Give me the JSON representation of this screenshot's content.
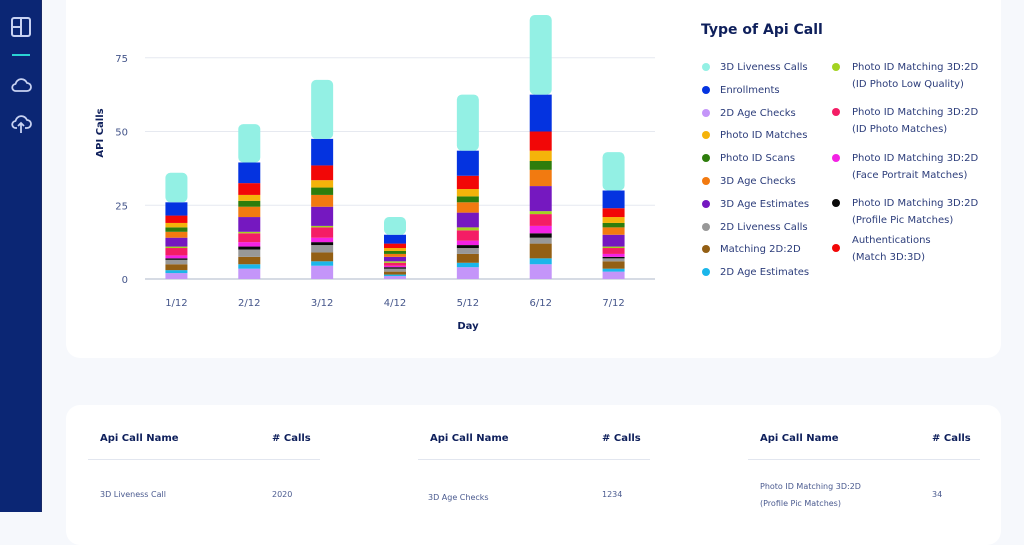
{
  "sidebar": {
    "items": [
      {
        "icon": "layout-icon",
        "active": true
      },
      {
        "icon": "cloud-icon",
        "active": false
      },
      {
        "icon": "cloud-upload-icon",
        "active": false
      }
    ]
  },
  "legend": {
    "title": "Type of Api Call",
    "left_column": [
      {
        "label": "3D Liveness Calls",
        "color": "#93f0e4"
      },
      {
        "label": "Enrollments",
        "color": "#0433e0"
      },
      {
        "label": "2D Age Checks",
        "color": "#c495f9"
      },
      {
        "label": "Photo ID Matches",
        "color": "#f5b30a"
      },
      {
        "label": "Photo ID Scans",
        "color": "#2e7d0c"
      },
      {
        "label": "3D Age Checks",
        "color": "#f27a10"
      },
      {
        "label": "3D Age Estimates",
        "color": "#7518c0"
      },
      {
        "label": "2D Liveness Calls",
        "color": "#989898"
      },
      {
        "label": "Matching 2D:2D",
        "color": "#935f14"
      },
      {
        "label": "2D Age Estimates",
        "color": "#1bb6ea"
      }
    ],
    "right_column": [
      {
        "line1": "Photo ID Matching 3D:2D",
        "line2": "(ID Photo Low Quality)",
        "color": "#a3d321"
      },
      {
        "line1": "Photo ID Matching 3D:2D",
        "line2": "(ID Photo Matches)",
        "color": "#f41d65"
      },
      {
        "line1": "Photo ID Matching 3D:2D",
        "line2": "(Face Portrait Matches)",
        "color": "#f322e4"
      },
      {
        "line1": "Photo ID Matching 3D:2D",
        "line2": "(Profile Pic Matches)",
        "color": "#0a0a0a"
      },
      {
        "line1": "Authentications",
        "line2": "(Match 3D:3D)",
        "color": "#f20707"
      }
    ]
  },
  "chart_data": {
    "type": "bar",
    "stacked": true,
    "title": "",
    "xlabel": "Day",
    "ylabel": "API Calls",
    "ylim": [
      0,
      90
    ],
    "yticks": [
      0,
      25,
      50,
      75
    ],
    "grid": true,
    "legend_position": "right",
    "categories": [
      "1/12",
      "2/12",
      "3/12",
      "4/12",
      "5/12",
      "6/12",
      "7/12"
    ],
    "series": [
      {
        "name": "2D Age Checks",
        "color": "#c495f9",
        "values": [
          2,
          3.5,
          4.5,
          1,
          4,
          5,
          2.5
        ]
      },
      {
        "name": "2D Age Estimates",
        "color": "#1bb6ea",
        "values": [
          1,
          1.5,
          1.5,
          0.5,
          1.5,
          2,
          1
        ]
      },
      {
        "name": "Matching 2D:2D",
        "color": "#935f14",
        "values": [
          2,
          2.5,
          3,
          1,
          3,
          5,
          2.5
        ]
      },
      {
        "name": "2D Liveness Calls",
        "color": "#989898",
        "values": [
          1.5,
          2.5,
          2.5,
          1,
          2,
          2,
          1
        ]
      },
      {
        "name": "Photo ID Matching 3D:2D (Profile Pic Matches)",
        "color": "#0a0a0a",
        "values": [
          0.5,
          1,
          1,
          0.5,
          1,
          1.5,
          0.5
        ]
      },
      {
        "name": "Photo ID Matching 3D:2D (Face Portrait Matches)",
        "color": "#f322e4",
        "values": [
          1,
          1.5,
          1.5,
          0.5,
          1.5,
          2.5,
          1
        ]
      },
      {
        "name": "Photo ID Matching 3D:2D (ID Photo Matches)",
        "color": "#f41d65",
        "values": [
          2.5,
          3,
          3.5,
          1,
          3.5,
          4,
          2
        ]
      },
      {
        "name": "Photo ID Matching 3D:2D (ID Photo Low Quality)",
        "color": "#a3d321",
        "values": [
          0.5,
          0.5,
          0.5,
          0.5,
          1,
          1,
          0.5
        ]
      },
      {
        "name": "3D Age Estimates",
        "color": "#7518c0",
        "values": [
          3,
          5,
          6.5,
          1.5,
          5,
          8.5,
          4
        ]
      },
      {
        "name": "3D Age Checks",
        "color": "#f27a10",
        "values": [
          2,
          3.5,
          4,
          1,
          3.5,
          5.5,
          2.5
        ]
      },
      {
        "name": "Photo ID Scans",
        "color": "#2e7d0c",
        "values": [
          1.5,
          2,
          2.5,
          1,
          2,
          3,
          1.5
        ]
      },
      {
        "name": "Photo ID Matches",
        "color": "#f5b30a",
        "values": [
          1.5,
          2,
          2.5,
          1,
          2.5,
          3.5,
          2
        ]
      },
      {
        "name": "Authentications (Match 3D:3D)",
        "color": "#f20707",
        "values": [
          2.5,
          4,
          5,
          1.5,
          4.5,
          6.5,
          3
        ]
      },
      {
        "name": "Enrollments",
        "color": "#0433e0",
        "values": [
          4.5,
          7,
          9,
          3,
          8.5,
          12.5,
          6
        ]
      },
      {
        "name": "3D Liveness Calls",
        "color": "#93f0e4",
        "values": [
          10,
          13,
          20,
          6,
          19,
          27,
          13
        ]
      }
    ]
  },
  "tables": [
    {
      "headers": [
        "Api Call Name",
        "# Calls"
      ],
      "rows": [
        {
          "name": "3D Liveness Call",
          "calls": "2020"
        }
      ]
    },
    {
      "headers": [
        "Api Call Name",
        "# Calls"
      ],
      "rows": [
        {
          "name": "3D Age Checks",
          "calls": "1234"
        }
      ]
    },
    {
      "headers": [
        "Api Call Name",
        "# Calls"
      ],
      "rows": [
        {
          "name": "Photo ID Matching 3D:2D",
          "name2": "(Profile Pic Matches)",
          "calls": "34"
        }
      ]
    }
  ]
}
